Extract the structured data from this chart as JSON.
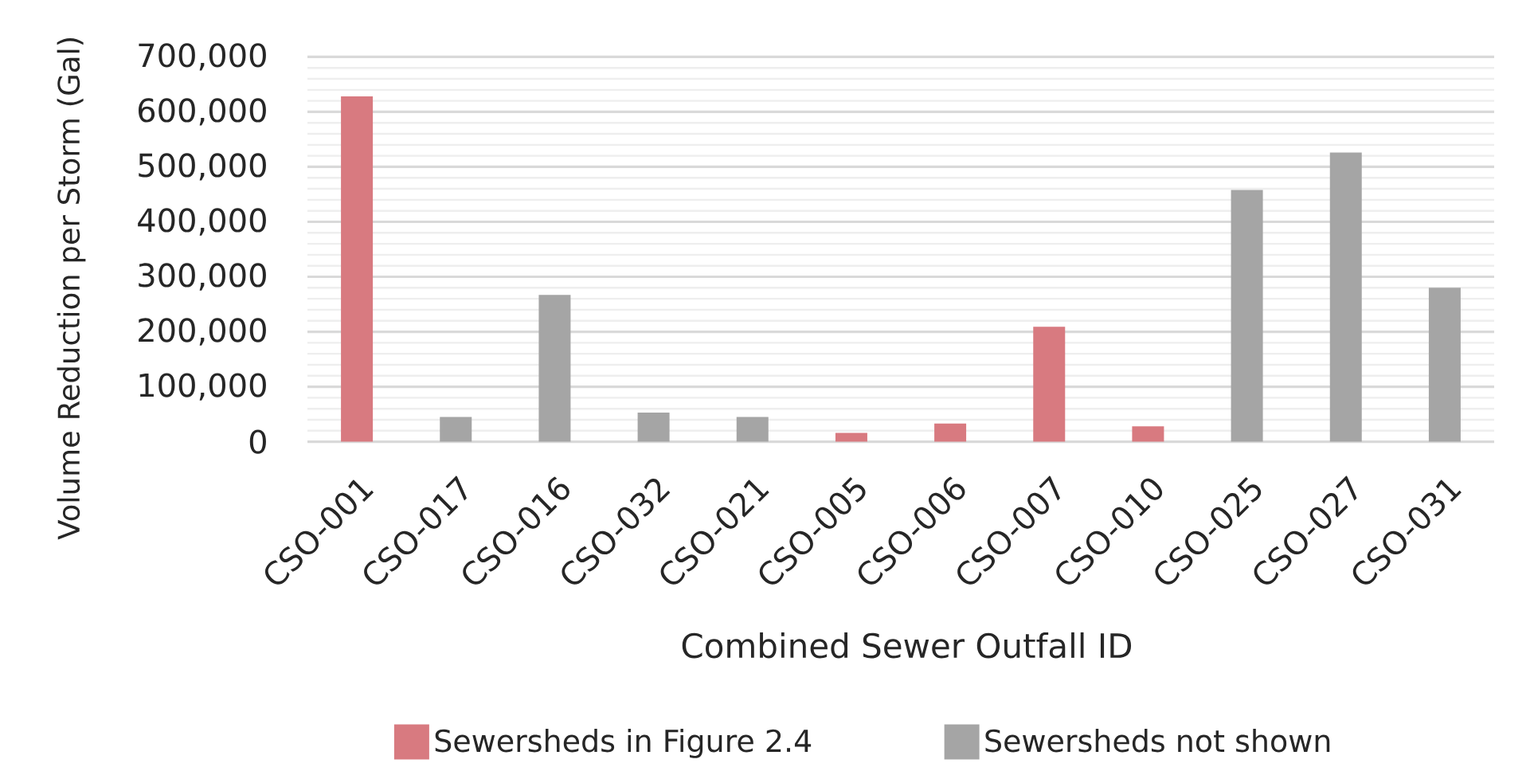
{
  "chart_data": {
    "type": "bar",
    "xlabel": "Combined Sewer Outfall ID",
    "ylabel": "Volume Reduction per Storm (Gal)",
    "categories": [
      "CSO-001",
      "CSO-017",
      "CSO-016",
      "CSO-032",
      "CSO-021",
      "CSO-005",
      "CSO-006",
      "CSO-007",
      "CSO-010",
      "CSO-025",
      "CSO-027",
      "CSO-031"
    ],
    "series": [
      {
        "name": "Sewersheds in Figure 2.4",
        "color": "#d87a80",
        "values": [
          628000,
          null,
          null,
          null,
          null,
          16000,
          33000,
          209000,
          28000,
          null,
          null,
          null
        ]
      },
      {
        "name": "Sewersheds not shown",
        "color": "#a5a5a5",
        "values": [
          null,
          45000,
          267000,
          53000,
          45000,
          null,
          null,
          null,
          null,
          458000,
          526000,
          280000
        ]
      }
    ],
    "ylim": [
      0,
      700000
    ],
    "yticks": [
      0,
      {
        "value": 20000,
        "label": null
      },
      {
        "value": 40000,
        "label": null
      },
      {
        "value": 60000,
        "label": null
      },
      {
        "value": 80000,
        "label": null
      },
      {
        "value": 100000,
        "label": "100,000"
      },
      {
        "value": 120000,
        "label": null
      },
      {
        "value": 140000,
        "label": null
      },
      {
        "value": 160000,
        "label": null
      },
      {
        "value": 180000,
        "label": null
      },
      {
        "value": 200000,
        "label": "200,000"
      },
      {
        "value": 220000,
        "label": null
      },
      {
        "value": 240000,
        "label": null
      },
      {
        "value": 260000,
        "label": null
      },
      {
        "value": 280000,
        "label": null
      },
      {
        "value": 300000,
        "label": "300,000"
      },
      {
        "value": 320000,
        "label": null
      },
      {
        "value": 340000,
        "label": null
      },
      {
        "value": 360000,
        "label": null
      },
      {
        "value": 380000,
        "label": null
      },
      {
        "value": 400000,
        "label": "400,000"
      },
      {
        "value": 420000,
        "label": null
      },
      {
        "value": 440000,
        "label": null
      },
      {
        "value": 460000,
        "label": null
      },
      {
        "value": 480000,
        "label": null
      },
      {
        "value": 500000,
        "label": "500,000"
      },
      {
        "value": 520000,
        "label": null
      },
      {
        "value": 540000,
        "label": null
      },
      {
        "value": 560000,
        "label": null
      },
      {
        "value": 580000,
        "label": null
      },
      {
        "value": 600000,
        "label": "600,000"
      },
      {
        "value": 620000,
        "label": null
      },
      {
        "value": 640000,
        "label": null
      },
      {
        "value": 660000,
        "label": null
      },
      {
        "value": 680000,
        "label": null
      },
      {
        "value": 700000,
        "label": "700,000"
      }
    ],
    "grid": "y",
    "legend": "bottom"
  }
}
